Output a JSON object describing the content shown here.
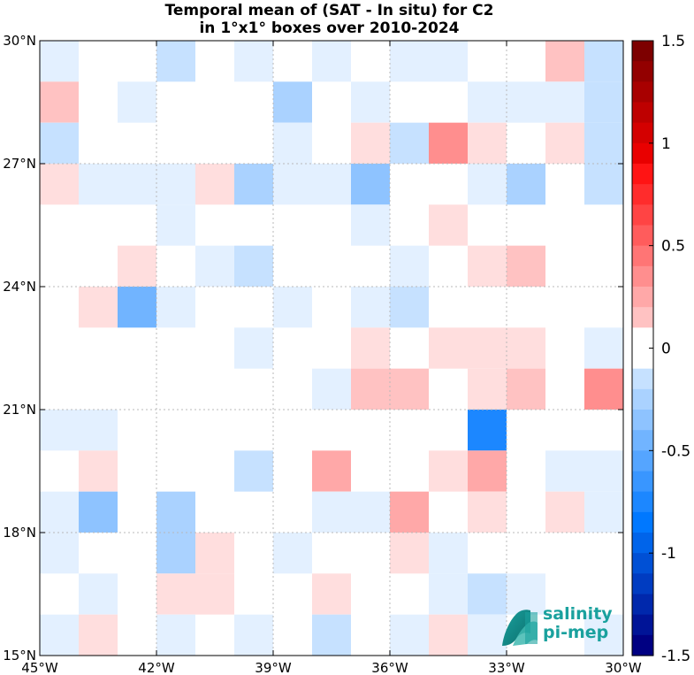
{
  "chart_data": {
    "type": "heatmap",
    "title": "Temporal mean of (SAT - In situ) for C2",
    "subtitle": "in 1°x1° boxes over 2010-2024",
    "x_range": [
      -45,
      -30
    ],
    "y_range": [
      15,
      30
    ],
    "x_ticks": [
      -45,
      -42,
      -39,
      -36,
      -33,
      -30
    ],
    "x_tick_labels": [
      "45°W",
      "42°W",
      "39°W",
      "36°W",
      "33°W",
      "30°W"
    ],
    "y_ticks": [
      15,
      18,
      21,
      24,
      27,
      30
    ],
    "y_tick_labels": [
      "15°N",
      "18°N",
      "21°N",
      "24°N",
      "27°N",
      "30°N"
    ],
    "grid": true,
    "colorbar": {
      "min": -1.5,
      "max": 1.5,
      "ticks": [
        1.5,
        1,
        0.5,
        0,
        -0.5,
        -1,
        -1.5
      ],
      "tick_labels": [
        "1.5",
        "1",
        "0.5",
        "0",
        "-0.5",
        "-1",
        "-1.5"
      ],
      "levels": 30
    },
    "cell_size_deg": 1,
    "rows_note": "rows ordered from 30°N (top) to 15°N (bottom); columns from 45°W to 30°W; values in PSU-like units, null = no data/white",
    "values": [
      [
        -0.1,
        0,
        0,
        -0.2,
        0,
        -0.1,
        0,
        -0.1,
        0,
        -0.1,
        -0.1,
        0,
        0,
        0.15,
        -0.2
      ],
      [
        0.2,
        0,
        -0.1,
        0,
        0,
        0,
        -0.3,
        0,
        -0.1,
        0,
        0,
        -0.1,
        -0.1,
        -0.1,
        -0.2
      ],
      [
        -0.2,
        0,
        0,
        0,
        0,
        0,
        -0.1,
        0,
        0.1,
        -0.2,
        0.35,
        0.1,
        0,
        0.1,
        -0.2
      ],
      [
        0.1,
        -0.1,
        -0.1,
        -0.1,
        0.1,
        -0.3,
        -0.1,
        -0.1,
        -0.4,
        0,
        0,
        -0.1,
        -0.3,
        0,
        -0.2
      ],
      [
        0,
        0,
        0,
        -0.1,
        0,
        0,
        0,
        0,
        -0.1,
        0,
        0.1,
        0,
        0,
        0,
        0
      ],
      [
        0,
        0,
        0.1,
        0,
        -0.1,
        -0.2,
        0,
        0,
        0,
        -0.1,
        0,
        0.1,
        0.2,
        0,
        0
      ],
      [
        0,
        0.1,
        -0.45,
        -0.1,
        0,
        0,
        -0.1,
        0,
        -0.1,
        -0.2,
        0,
        0,
        0,
        0,
        0
      ],
      [
        0,
        0,
        0,
        0,
        0,
        -0.1,
        0,
        0,
        0.1,
        0,
        0.1,
        0.1,
        0.1,
        0,
        -0.1
      ],
      [
        0,
        0,
        0,
        0,
        0,
        0,
        0,
        -0.1,
        0.2,
        0.2,
        0,
        0.1,
        0.2,
        0,
        0.35
      ],
      [
        -0.1,
        -0.1,
        0,
        0,
        0,
        0,
        0,
        0,
        0,
        0,
        0,
        -0.75,
        0,
        0,
        0
      ],
      [
        0,
        0.1,
        0,
        0,
        0,
        -0.2,
        0,
        0.25,
        0,
        0,
        0.1,
        0.25,
        0,
        -0.1,
        -0.1
      ],
      [
        -0.1,
        -0.35,
        0,
        -0.25,
        0,
        0,
        0,
        -0.1,
        -0.1,
        0.25,
        0,
        0.1,
        0,
        0.1,
        -0.1
      ],
      [
        -0.1,
        0,
        0,
        -0.25,
        0.1,
        0,
        -0.1,
        0,
        0,
        0.1,
        -0.1,
        0,
        0,
        0,
        0
      ],
      [
        0,
        -0.1,
        0,
        0.1,
        0.1,
        0,
        0,
        0.1,
        0,
        0,
        -0.1,
        -0.2,
        -0.1,
        0,
        0
      ],
      [
        -0.1,
        0.1,
        0,
        -0.1,
        0,
        -0.1,
        0,
        -0.2,
        0,
        -0.1,
        0.1,
        -0.1,
        0,
        0,
        -0.1
      ]
    ]
  },
  "logo": {
    "line1": "salinity",
    "line2": "pi-mep"
  },
  "colors": {
    "grid": "#b8b8b8",
    "axis": "#000000",
    "logo": "#1aa19e"
  }
}
